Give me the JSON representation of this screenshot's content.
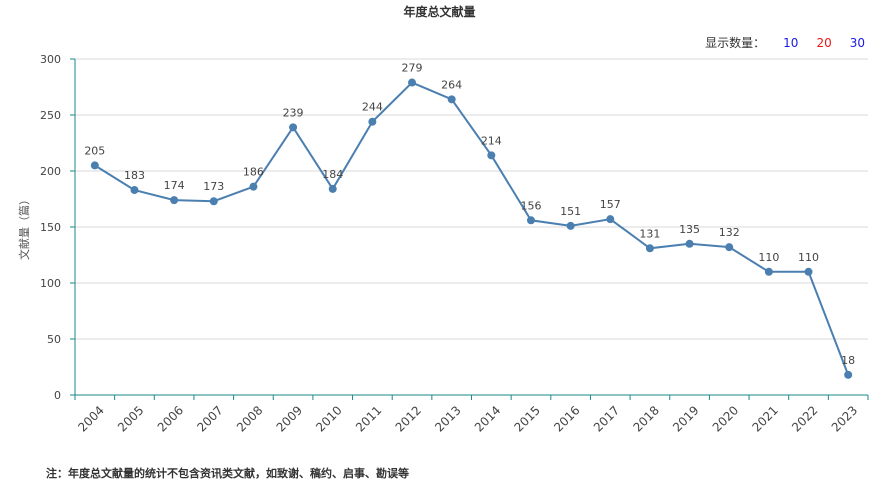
{
  "page": {
    "count_label": "显示数量：",
    "count_options": [
      "10",
      "20",
      "30"
    ],
    "footnote": "注：年度总文献量的统计不包含资讯类文献，如致谢、稿约、启事、勘误等"
  },
  "colors": {
    "line": "#4a7fb0",
    "axis": "#1a8a8a",
    "grid": "#d9d9d9",
    "opt10": "#1a1ae6",
    "opt20": "#e61a1a",
    "opt30": "#1a1ae6"
  },
  "chart_data": {
    "type": "line",
    "title": "年度总文献量",
    "xlabel": "",
    "ylabel": "文献量（篇）",
    "ylim": [
      0,
      300
    ],
    "yticks": [
      0,
      50,
      100,
      150,
      200,
      250,
      300
    ],
    "grid": true,
    "categories": [
      "2004",
      "2005",
      "2006",
      "2007",
      "2008",
      "2009",
      "2010",
      "2011",
      "2012",
      "2013",
      "2014",
      "2015",
      "2016",
      "2017",
      "2018",
      "2019",
      "2020",
      "2021",
      "2022",
      "2023"
    ],
    "series": [
      {
        "values": [
          205,
          183,
          174,
          173,
          186,
          239,
          184,
          244,
          279,
          264,
          214,
          156,
          151,
          157,
          131,
          135,
          132,
          110,
          110,
          18
        ]
      }
    ]
  }
}
